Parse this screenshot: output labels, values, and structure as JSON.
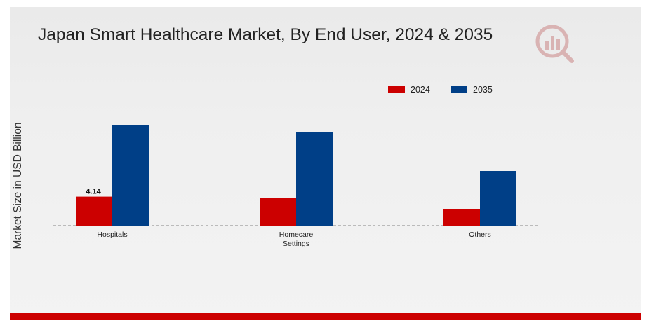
{
  "title": "Japan Smart Healthcare Market, By End User, 2024 & 2035",
  "logo": {
    "icon": "market-research-logo-icon"
  },
  "colors": {
    "series_2024": "#cc0000",
    "series_2035": "#003f87",
    "footer_bar": "#cc0000",
    "baseline": "#9a9a9a",
    "logo": "#d9b3b3"
  },
  "chart_data": {
    "type": "bar",
    "title": "Japan Smart Healthcare Market, By End User, 2024 & 2035",
    "xlabel": "",
    "ylabel": "Market Size in USD Billion",
    "categories": [
      "Hospitals",
      "Homecare Settings",
      "Others"
    ],
    "category_display": [
      [
        "Hospitals"
      ],
      [
        "Homecare",
        "Settings"
      ],
      [
        "Others"
      ]
    ],
    "series": [
      {
        "name": "2024",
        "values": [
          4.14,
          3.9,
          2.4
        ]
      },
      {
        "name": "2035",
        "values": [
          14.3,
          13.3,
          7.8
        ]
      }
    ],
    "data_labels": [
      {
        "series": "2024",
        "category": "Hospitals",
        "text": "4.14"
      }
    ],
    "ylim": [
      0,
      30
    ],
    "grid": false,
    "baseline": "dashed",
    "legend_position": "top-right"
  }
}
